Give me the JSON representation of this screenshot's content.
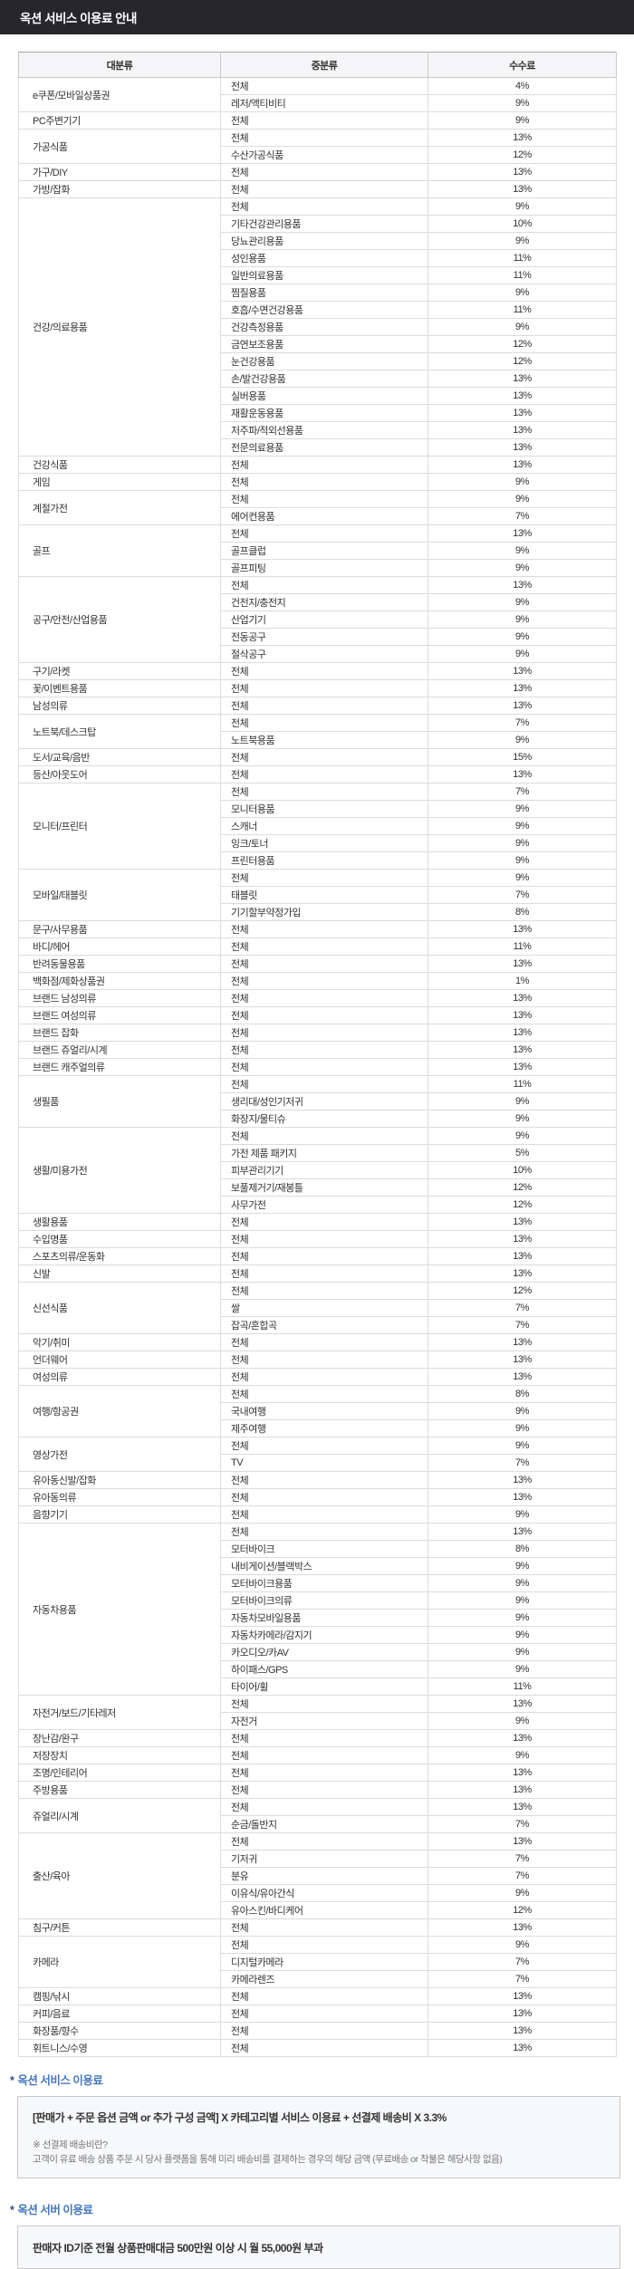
{
  "header": {
    "title": "옥션 서비스 이용료 안내"
  },
  "colors": {
    "topbar_bg": "#26262b",
    "topbar_text": "#ffffff",
    "accent_blue": "#4678bc",
    "star_navy": "#3c4a86",
    "table_header_bg": "#f5f5f7",
    "note_box_bg": "#f7f8fb",
    "cell_text": "#333333"
  },
  "table": {
    "headers": [
      "대분류",
      "중분류",
      "수수료"
    ],
    "categories": [
      {
        "name": "e쿠폰/모바일상품권",
        "rows": [
          [
            "전체",
            "4%"
          ],
          [
            "레저/액티비티",
            "9%"
          ]
        ]
      },
      {
        "name": "PC주변기기",
        "rows": [
          [
            "전체",
            "9%"
          ]
        ]
      },
      {
        "name": "가공식품",
        "rows": [
          [
            "전체",
            "13%"
          ],
          [
            "수산가공식품",
            "12%"
          ]
        ]
      },
      {
        "name": "가구/DIY",
        "rows": [
          [
            "전체",
            "13%"
          ]
        ]
      },
      {
        "name": "가방/잡화",
        "rows": [
          [
            "전체",
            "13%"
          ]
        ]
      },
      {
        "name": "건강/의료용품",
        "rows": [
          [
            "전체",
            "9%"
          ],
          [
            "기타건강관리용품",
            "10%"
          ],
          [
            "당뇨관리용품",
            "9%"
          ],
          [
            "성인용품",
            "11%"
          ],
          [
            "일반의료용품",
            "11%"
          ],
          [
            "찜질용품",
            "9%"
          ],
          [
            "호흡/수면건강용품",
            "11%"
          ],
          [
            "건강측정용품",
            "9%"
          ],
          [
            "금연보조용품",
            "12%"
          ],
          [
            "눈건강용품",
            "12%"
          ],
          [
            "손/발건강용품",
            "13%"
          ],
          [
            "실버용품",
            "13%"
          ],
          [
            "재활운동용품",
            "13%"
          ],
          [
            "저주파/적외선용품",
            "13%"
          ],
          [
            "전문의료용품",
            "13%"
          ]
        ]
      },
      {
        "name": "건강식품",
        "rows": [
          [
            "전체",
            "13%"
          ]
        ]
      },
      {
        "name": "게임",
        "rows": [
          [
            "전체",
            "9%"
          ]
        ]
      },
      {
        "name": "계절가전",
        "rows": [
          [
            "전체",
            "9%"
          ],
          [
            "에어컨용품",
            "7%"
          ]
        ]
      },
      {
        "name": "골프",
        "rows": [
          [
            "전체",
            "13%"
          ],
          [
            "골프클럽",
            "9%"
          ],
          [
            "골프피팅",
            "9%"
          ]
        ]
      },
      {
        "name": "공구/안전/산업용품",
        "rows": [
          [
            "전체",
            "13%"
          ],
          [
            "건전지/충전지",
            "9%"
          ],
          [
            "산업기기",
            "9%"
          ],
          [
            "전동공구",
            "9%"
          ],
          [
            "절삭공구",
            "9%"
          ]
        ]
      },
      {
        "name": "구기/라켓",
        "rows": [
          [
            "전체",
            "13%"
          ]
        ]
      },
      {
        "name": "꽃/이벤트용품",
        "rows": [
          [
            "전체",
            "13%"
          ]
        ]
      },
      {
        "name": "남성의류",
        "rows": [
          [
            "전체",
            "13%"
          ]
        ]
      },
      {
        "name": "노트북/데스크탑",
        "rows": [
          [
            "전체",
            "7%"
          ],
          [
            "노트북용품",
            "9%"
          ]
        ]
      },
      {
        "name": "도서/교육/음반",
        "rows": [
          [
            "전체",
            "15%"
          ]
        ]
      },
      {
        "name": "등산/아웃도어",
        "rows": [
          [
            "전체",
            "13%"
          ]
        ]
      },
      {
        "name": "모니터/프린터",
        "rows": [
          [
            "전체",
            "7%"
          ],
          [
            "모니터용품",
            "9%"
          ],
          [
            "스캐너",
            "9%"
          ],
          [
            "잉크/토너",
            "9%"
          ],
          [
            "프린터용품",
            "9%"
          ]
        ]
      },
      {
        "name": "모바일/태블릿",
        "rows": [
          [
            "전체",
            "9%"
          ],
          [
            "태블릿",
            "7%"
          ],
          [
            "기기할부약정가입",
            "8%"
          ]
        ]
      },
      {
        "name": "문구/사무용품",
        "rows": [
          [
            "전체",
            "13%"
          ]
        ]
      },
      {
        "name": "바디/헤어",
        "rows": [
          [
            "전체",
            "11%"
          ]
        ]
      },
      {
        "name": "반려동물용품",
        "rows": [
          [
            "전체",
            "13%"
          ]
        ]
      },
      {
        "name": "백화점/제화상품권",
        "rows": [
          [
            "전체",
            "1%"
          ]
        ]
      },
      {
        "name": "브랜드 남성의류",
        "rows": [
          [
            "전체",
            "13%"
          ]
        ]
      },
      {
        "name": "브랜드 여성의류",
        "rows": [
          [
            "전체",
            "13%"
          ]
        ]
      },
      {
        "name": "브랜드 잡화",
        "rows": [
          [
            "전체",
            "13%"
          ]
        ]
      },
      {
        "name": "브랜드 쥬얼리/시계",
        "rows": [
          [
            "전체",
            "13%"
          ]
        ]
      },
      {
        "name": "브랜드 캐주얼의류",
        "rows": [
          [
            "전체",
            "13%"
          ]
        ]
      },
      {
        "name": "생필품",
        "rows": [
          [
            "전체",
            "11%"
          ],
          [
            "생리대/성인기저귀",
            "9%"
          ],
          [
            "화장지/물티슈",
            "9%"
          ]
        ]
      },
      {
        "name": "생활/미용가전",
        "rows": [
          [
            "전체",
            "9%"
          ],
          [
            "가전 제품 패키지",
            "5%"
          ],
          [
            "피부관리기기",
            "10%"
          ],
          [
            "보풀제거기/재봉틀",
            "12%"
          ],
          [
            "사무가전",
            "12%"
          ]
        ]
      },
      {
        "name": "생활용품",
        "rows": [
          [
            "전체",
            "13%"
          ]
        ]
      },
      {
        "name": "수입명품",
        "rows": [
          [
            "전체",
            "13%"
          ]
        ]
      },
      {
        "name": "스포츠의류/운동화",
        "rows": [
          [
            "전체",
            "13%"
          ]
        ]
      },
      {
        "name": "신발",
        "rows": [
          [
            "전체",
            "13%"
          ]
        ]
      },
      {
        "name": "신선식품",
        "rows": [
          [
            "전체",
            "12%"
          ],
          [
            "쌀",
            "7%"
          ],
          [
            "잡곡/혼합곡",
            "7%"
          ]
        ]
      },
      {
        "name": "악기/취미",
        "rows": [
          [
            "전체",
            "13%"
          ]
        ]
      },
      {
        "name": "언더웨어",
        "rows": [
          [
            "전체",
            "13%"
          ]
        ]
      },
      {
        "name": "여성의류",
        "rows": [
          [
            "전체",
            "13%"
          ]
        ]
      },
      {
        "name": "여행/항공권",
        "rows": [
          [
            "전체",
            "8%"
          ],
          [
            "국내여행",
            "9%"
          ],
          [
            "제주여행",
            "9%"
          ]
        ]
      },
      {
        "name": "영상가전",
        "rows": [
          [
            "전체",
            "9%"
          ],
          [
            "TV",
            "7%"
          ]
        ]
      },
      {
        "name": "유아동신발/잡화",
        "rows": [
          [
            "전체",
            "13%"
          ]
        ]
      },
      {
        "name": "유아동의류",
        "rows": [
          [
            "전체",
            "13%"
          ]
        ]
      },
      {
        "name": "음향기기",
        "rows": [
          [
            "전체",
            "9%"
          ]
        ]
      },
      {
        "name": "자동차용품",
        "rows": [
          [
            "전체",
            "13%"
          ],
          [
            "모터바이크",
            "8%"
          ],
          [
            "내비게이션/블랙박스",
            "9%"
          ],
          [
            "모터바이크용품",
            "9%"
          ],
          [
            "모터바이크의류",
            "9%"
          ],
          [
            "자동차모바일용품",
            "9%"
          ],
          [
            "자동차카메라/감지기",
            "9%"
          ],
          [
            "카오디오/카AV",
            "9%"
          ],
          [
            "하이패스/GPS",
            "9%"
          ],
          [
            "타이어/휠",
            "11%"
          ]
        ]
      },
      {
        "name": "자전거/보드/기타레저",
        "rows": [
          [
            "전체",
            "13%"
          ],
          [
            "자전거",
            "9%"
          ]
        ]
      },
      {
        "name": "장난감/완구",
        "rows": [
          [
            "전체",
            "13%"
          ]
        ]
      },
      {
        "name": "저장장치",
        "rows": [
          [
            "전체",
            "9%"
          ]
        ]
      },
      {
        "name": "조명/인테리어",
        "rows": [
          [
            "전체",
            "13%"
          ]
        ]
      },
      {
        "name": "주방용품",
        "rows": [
          [
            "전체",
            "13%"
          ]
        ]
      },
      {
        "name": "쥬얼리/시계",
        "rows": [
          [
            "전체",
            "13%"
          ],
          [
            "순금/돌반지",
            "7%"
          ]
        ]
      },
      {
        "name": "출산/육아",
        "rows": [
          [
            "전체",
            "13%"
          ],
          [
            "기저귀",
            "7%"
          ],
          [
            "분유",
            "7%"
          ],
          [
            "이유식/유아간식",
            "9%"
          ],
          [
            "유아스킨/바디케어",
            "12%"
          ]
        ]
      },
      {
        "name": "침구/커튼",
        "rows": [
          [
            "전체",
            "13%"
          ]
        ]
      },
      {
        "name": "카메라",
        "rows": [
          [
            "전체",
            "9%"
          ],
          [
            "디지털카메라",
            "7%"
          ],
          [
            "카메라렌즈",
            "7%"
          ]
        ]
      },
      {
        "name": "캠핑/낚시",
        "rows": [
          [
            "전체",
            "13%"
          ]
        ]
      },
      {
        "name": "커피/음료",
        "rows": [
          [
            "전체",
            "13%"
          ]
        ]
      },
      {
        "name": "화장품/향수",
        "rows": [
          [
            "전체",
            "13%"
          ]
        ]
      },
      {
        "name": "휘트니스/수영",
        "rows": [
          [
            "전체",
            "13%"
          ]
        ]
      }
    ]
  },
  "notes": {
    "service_fee": {
      "star": "*",
      "title": "옥션 서비스 이용료",
      "formula": "[판매가 + 주문 옵션 금액 or 추가 구성 금액] X 카테고리별 서비스 이용료 + 선결제 배송비 X 3.3%",
      "faq_question": "※ 선결제 배송비란?",
      "faq_answer": "고객이 유료 배송 상품 주문 시 당사 플랫폼을 통해 미리 배송비를 결제하는 경우의 해당 금액 (무료배송 or 착불은 해당사항 없음)"
    },
    "server_fee": {
      "star": "*",
      "title": "옥션 서버 이용료",
      "body": "판매자 ID기준 전월 상품판매대금 500만원 이상 시 월 55,000원 부과"
    }
  }
}
